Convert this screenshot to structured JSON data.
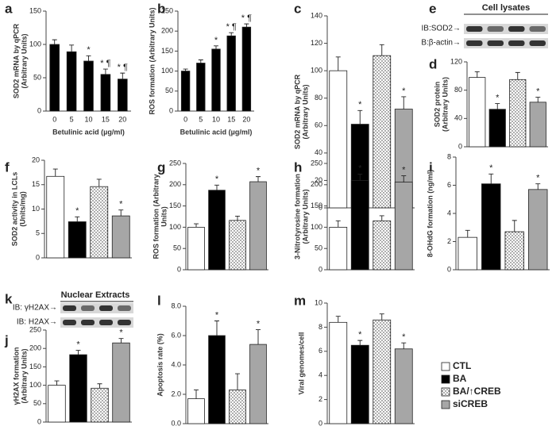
{
  "chart_data": [
    {
      "type": "bar",
      "letter": "a",
      "ylabel": [
        "SOD2 mRNA by qPCR",
        "(Arbitrary Units)"
      ],
      "xlabel": "Betulinic acid (µg/ml)",
      "categories": [
        "0",
        "5",
        "10",
        "15",
        "20"
      ],
      "color": "#000000",
      "values": [
        100,
        89,
        75,
        55,
        48
      ],
      "errors": [
        7,
        10,
        8,
        8,
        9
      ],
      "annotations": [
        null,
        null,
        "*",
        "* ¶",
        "* ¶"
      ],
      "ylim": [
        0,
        150
      ],
      "yticks": [
        0,
        50,
        100,
        150
      ]
    },
    {
      "type": "bar",
      "letter": "b",
      "ylabel": [
        "ROS formation (Arbitrary Units)"
      ],
      "xlabel": "Betulinic acid (µg/ml)",
      "categories": [
        "0",
        "5",
        "10",
        "15",
        "20"
      ],
      "color": "#000000",
      "values": [
        100,
        120,
        155,
        188,
        210
      ],
      "errors": [
        5,
        8,
        8,
        8,
        8
      ],
      "annotations": [
        null,
        null,
        "*",
        "* ¶",
        "* ¶"
      ],
      "ylim": [
        0,
        250
      ],
      "yticks": [
        0,
        50,
        100,
        150,
        200,
        250
      ]
    },
    {
      "type": "bar",
      "letter": "c",
      "ylabel": [
        "SOD2 mRNA by qPCR",
        "(Arbitrary Units)"
      ],
      "values": [
        100,
        61,
        111,
        72
      ],
      "errors": [
        10,
        10,
        8,
        9
      ],
      "annotations": [
        null,
        "*",
        null,
        "*"
      ],
      "ylim": [
        0,
        140
      ],
      "yticks": [
        0,
        20,
        40,
        60,
        80,
        100,
        120,
        140
      ]
    },
    {
      "type": "bar",
      "letter": "d",
      "ylabel": [
        "SOD2 protein",
        "(Arbitrary Units)"
      ],
      "values": [
        98,
        53,
        95,
        63
      ],
      "errors": [
        8,
        8,
        10,
        7
      ],
      "annotations": [
        null,
        "*",
        null,
        "*"
      ],
      "ylim": [
        0,
        120
      ],
      "yticks": [
        0,
        40,
        80,
        120
      ]
    },
    {
      "type": "bar",
      "letter": "f",
      "ylabel": [
        "SOD2 activity in LCLs",
        "(Units/mg)"
      ],
      "values": [
        16.7,
        7.4,
        14.6,
        8.6
      ],
      "errors": [
        1.5,
        1,
        1.5,
        1.2
      ],
      "annotations": [
        null,
        "*",
        null,
        "*"
      ],
      "ylim": [
        0,
        20
      ],
      "yticks": [
        0,
        5,
        10,
        15,
        20
      ]
    },
    {
      "type": "bar",
      "letter": "g",
      "ylabel": [
        "ROS formation (Arbitrary",
        "Units)"
      ],
      "values": [
        100,
        187,
        116,
        207
      ],
      "errors": [
        8,
        12,
        10,
        12
      ],
      "annotations": [
        null,
        "*",
        null,
        "*"
      ],
      "ylim": [
        0,
        250
      ],
      "yticks": [
        0,
        50,
        100,
        150,
        200,
        250
      ]
    },
    {
      "type": "bar",
      "letter": "h",
      "ylabel": [
        "3-Nitrotyrosine formation",
        "(Arbitrary Units)"
      ],
      "values": [
        100,
        210,
        115,
        206
      ],
      "errors": [
        15,
        15,
        12,
        15
      ],
      "annotations": [
        null,
        "*",
        null,
        "*"
      ],
      "ylim": [
        0,
        250
      ],
      "yticks": [
        0,
        50,
        100,
        150,
        200,
        250
      ]
    },
    {
      "type": "bar",
      "letter": "i",
      "ylabel": [
        "8-OHdG formation (ng/ml)"
      ],
      "values": [
        2.3,
        6.1,
        2.7,
        5.7
      ],
      "errors": [
        0.5,
        0.7,
        0.8,
        0.4
      ],
      "annotations": [
        null,
        "*",
        null,
        "*"
      ],
      "ylim": [
        0,
        8
      ],
      "yticks": [
        0,
        2,
        4,
        6,
        8
      ]
    },
    {
      "type": "bar",
      "letter": "j",
      "ylabel": [
        "γH2AX formation",
        "(Arbitrary Units)"
      ],
      "values": [
        100,
        183,
        92,
        215
      ],
      "errors": [
        12,
        12,
        12,
        12
      ],
      "annotations": [
        null,
        "*",
        null,
        "*"
      ],
      "ylim": [
        0,
        250
      ],
      "yticks": [
        0,
        50,
        100,
        150,
        200,
        250
      ]
    },
    {
      "type": "bar",
      "letter": "l",
      "ylabel": [
        "Apoptosis rate (%)"
      ],
      "values": [
        1.7,
        6.0,
        2.3,
        5.4
      ],
      "errors": [
        0.6,
        1.0,
        1.1,
        1.0
      ],
      "annotations": [
        null,
        "*",
        null,
        "*"
      ],
      "ylim": [
        0,
        8
      ],
      "yticks": [
        {
          "value": 0,
          "label": "0.0"
        },
        {
          "value": 2,
          "label": "2.0"
        },
        {
          "value": 4,
          "label": "4.0"
        },
        {
          "value": 6,
          "label": "6.0"
        },
        {
          "value": 8,
          "label": "8.0"
        }
      ]
    },
    {
      "type": "bar",
      "letter": "m",
      "ylabel": [
        "Viral genomes/cell"
      ],
      "values": [
        8.4,
        6.5,
        8.6,
        6.2
      ],
      "errors": [
        0.5,
        0.4,
        0.5,
        0.5
      ],
      "annotations": [
        null,
        "*",
        null,
        "*"
      ],
      "ylim": [
        0,
        10
      ],
      "yticks": [
        0,
        2,
        4,
        6,
        8,
        10
      ]
    }
  ],
  "blots": [
    {
      "letter": "e",
      "title": "Cell lysates",
      "rows": [
        "IB:SOD2→",
        "B:β-actin→"
      ]
    },
    {
      "letter": "k",
      "title": "Nuclear Extracts",
      "rows": [
        "IB: γH2AX→",
        "IB: H2AX→"
      ]
    }
  ],
  "legend": [
    {
      "name": "CTL",
      "color": "#ffffff"
    },
    {
      "name": "BA",
      "color": "#000000"
    },
    {
      "name": "BA/↑CREB",
      "color": "#ffffff",
      "pattern": "dots"
    },
    {
      "name": "siCREB",
      "color": "#a6a6a6"
    }
  ]
}
